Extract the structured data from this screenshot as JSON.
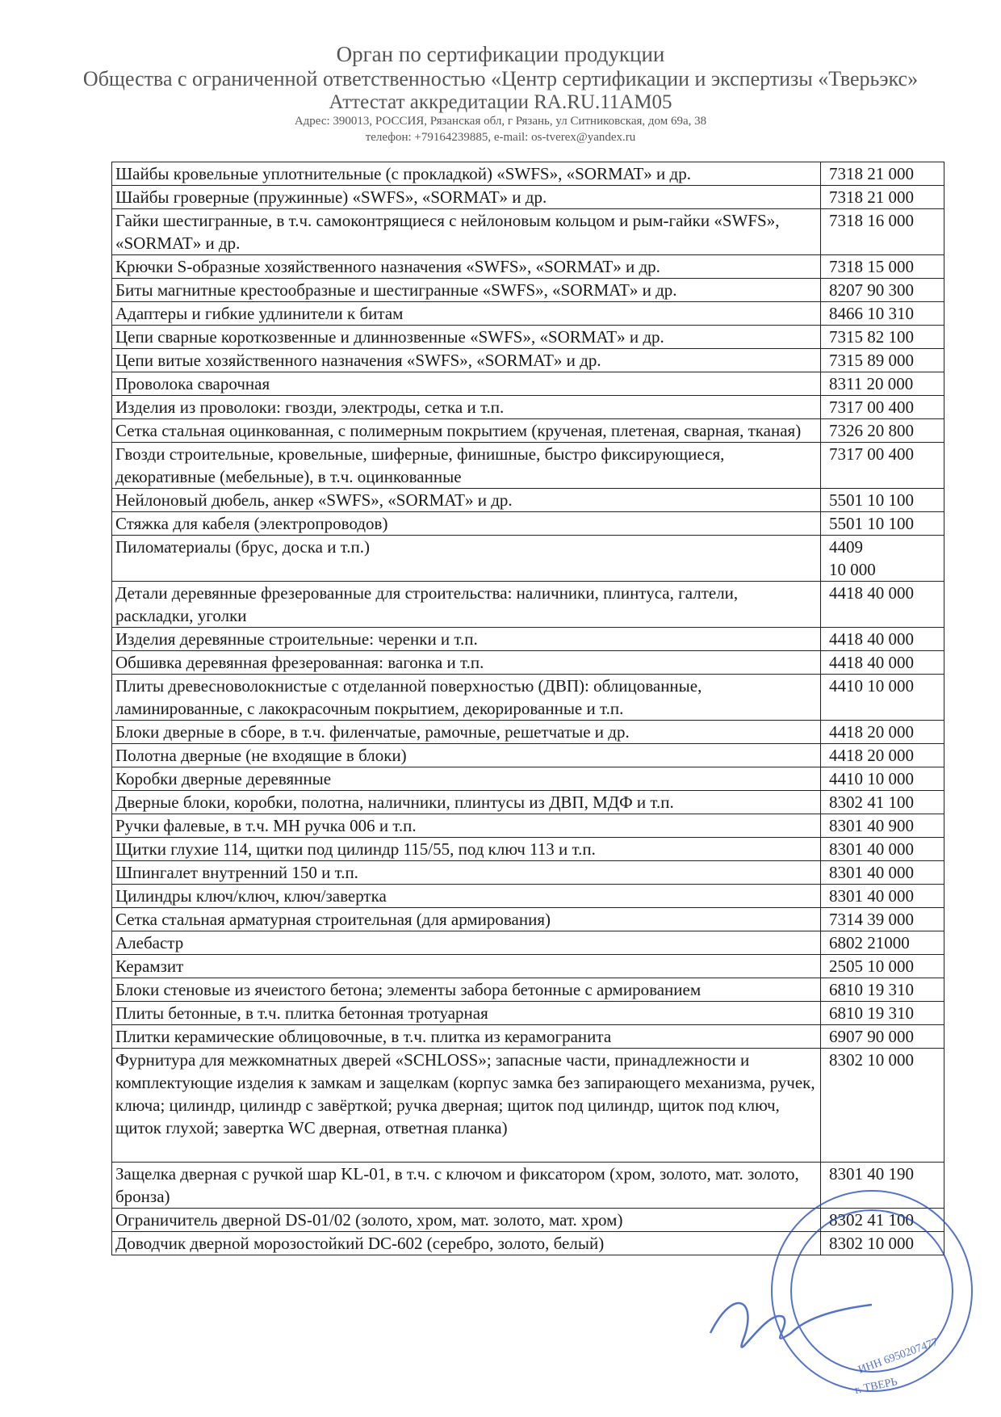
{
  "header": {
    "org": "Орган по сертификации продукции",
    "company": "Общества с ограниченной ответственностью «Центр сертификации и экспертизы «Тверьэкс»",
    "accreditation": "Аттестат аккредитации RA.RU.11АМ05",
    "address": "Адрес: 390013, РОССИЯ, Рязанская обл, г Рязань, ул Ситниковская, дом 69а, 38",
    "contacts": "телефон: +79164239885, e-mail: os-tverex@yandex.ru"
  },
  "table": {
    "rows": [
      [
        "Шайбы кровельные уплотнительные (с прокладкой) «SWFS», «SORMAT» и др.",
        "7318 21 000"
      ],
      [
        "Шайбы гроверные (пружинные) «SWFS», «SORMAT» и др.",
        "7318 21 000"
      ],
      [
        "Гайки шестигранные, в т.ч. самоконтрящиеся с нейлоновым кольцом и рым-гайки «SWFS», «SORMAT» и др.",
        "7318 16 000"
      ],
      [
        "Крючки S-образные хозяйственного назначения «SWFS», «SORMAT» и др.",
        "7318 15 000"
      ],
      [
        "Биты магнитные крестообразные и шестигранные «SWFS», «SORMAT» и др.",
        "8207 90 300"
      ],
      [
        "Адаптеры и гибкие удлинители к битам",
        "8466 10 310"
      ],
      [
        "Цепи сварные короткозвенные и длиннозвенные «SWFS», «SORMAT» и др.",
        "7315 82 100"
      ],
      [
        "Цепи витые хозяйственного назначения «SWFS», «SORMAT» и др.",
        "7315 89 000"
      ],
      [
        "Проволока сварочная",
        "8311 20 000"
      ],
      [
        "Изделия из проволоки: гвозди, электроды, сетка и т.п.",
        "7317 00 400"
      ],
      [
        "Сетка стальная оцинкованная, с полимерным покрытием (крученая, плетеная, сварная, тканая)",
        "7326 20 800"
      ],
      [
        "Гвозди строительные, кровельные, шиферные, финишные, быстро фиксирующиеся, декоративные (мебельные), в т.ч. оцинкованные",
        "7317 00 400"
      ],
      [
        "Нейлоновый дюбель, анкер «SWFS», «SORMAT» и др.",
        "5501 10 100"
      ],
      [
        "Стяжка для кабеля (электропроводов)",
        "5501 10 100"
      ],
      [
        "Пиломатериалы (брус, доска и т.п.)",
        "4409\n10 000"
      ],
      [
        "Детали деревянные фрезерованные для строительства: наличники, плинтуса, галтели, раскладки, уголки",
        "4418 40 000"
      ],
      [
        "Изделия деревянные строительные: черенки и т.п.",
        "4418 40 000"
      ],
      [
        "Обшивка деревянная фрезерованная: вагонка и т.п.",
        "4418 40 000"
      ],
      [
        "Плиты древесноволокнистые с отделанной поверхностью (ДВП): облицованные, ламинированные, с лакокрасочным покрытием, декорированные и т.п.",
        "4410 10 000"
      ],
      [
        "Блоки дверные в сборе, в т.ч. филенчатые, рамочные, решетчатые и др.",
        "4418 20 000"
      ],
      [
        "Полотна дверные (не входящие в блоки)",
        "4418 20 000"
      ],
      [
        "Коробки дверные деревянные",
        "4410 10 000"
      ],
      [
        "Дверные блоки, коробки, полотна, наличники, плинтусы из ДВП, МДФ и т.п.",
        "8302 41 100"
      ],
      [
        "Ручки фалевые, в т.ч. МН ручка 006 и т.п.",
        "8301 40 900"
      ],
      [
        "Щитки глухие 114, щитки под цилиндр 115/55, под ключ 113 и т.п.",
        "8301 40 000"
      ],
      [
        "Шпингалет внутренний 150 и т.п.",
        "8301 40 000"
      ],
      [
        "Цилиндры ключ/ключ, ключ/завертка",
        "8301 40 000"
      ],
      [
        "Сетка стальная арматурная строительная (для армирования)",
        "7314 39 000"
      ],
      [
        "Алебастр",
        "6802 21000"
      ],
      [
        "Керамзит",
        "2505 10 000"
      ],
      [
        "Блоки стеновые из ячеистого бетона; элементы забора бетонные с армированием",
        "6810 19 310"
      ],
      [
        "Плиты бетонные, в т.ч. плитка бетонная тротуарная",
        "6810 19 310"
      ],
      [
        "Плитки керамические облицовочные, в т.ч. плитка из керамогранита",
        "6907 90 000"
      ],
      [
        "Фурнитура для межкомнатных дверей «SCHLOSS»; запасные части, принадлежности и комплектующие изделия к замкам и защелкам (корпус замка без запирающего механизма, ручек, ключа; цилиндр, цилиндр с завёрткой; ручка дверная; щиток под цилиндр, щиток под ключ, щиток глухой; завертка WC дверная, ответная планка)",
        "8302 10 000"
      ],
      [
        "Защелка дверная с ручкой шар KL-01, в т.ч. с ключом и фиксатором (хром, золото, мат. золото, бронза)",
        "8301 40 190"
      ],
      [
        "Ограничитель дверной DS-01/02 (золото, хром, мат. золото, мат. хром)",
        "8302 41 100"
      ],
      [
        "Доводчик дверной морозостойкий DC-602 (серебро, золото, белый)",
        "8302 10 000"
      ]
    ]
  },
  "stamp": {
    "inn": "ИНН 6950207477",
    "city": "г. ТВЕРЬ"
  }
}
